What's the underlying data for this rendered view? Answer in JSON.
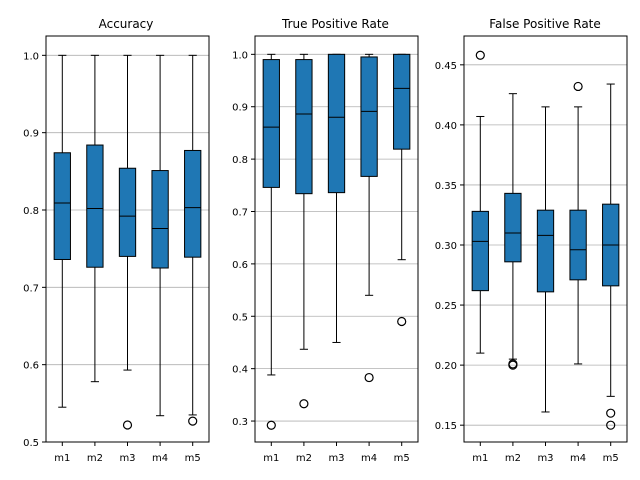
{
  "chart_data": [
    {
      "type": "boxplot",
      "title": "Accuracy",
      "categories": [
        "m1",
        "m2",
        "m3",
        "m4",
        "m5"
      ],
      "ylim": [
        0.5,
        1.025
      ],
      "yticks": [
        0.5,
        0.6,
        0.7,
        0.8,
        0.9,
        1.0
      ],
      "ytick_labels": [
        "0.5",
        "0.6",
        "0.7",
        "0.8",
        "0.9",
        "1.0"
      ],
      "grid": "y",
      "boxes": [
        {
          "whislo": 0.545,
          "q1": 0.736,
          "med": 0.809,
          "q3": 0.874,
          "whishi": 1.0,
          "fliers": []
        },
        {
          "whislo": 0.578,
          "q1": 0.726,
          "med": 0.802,
          "q3": 0.884,
          "whishi": 1.0,
          "fliers": []
        },
        {
          "whislo": 0.593,
          "q1": 0.74,
          "med": 0.792,
          "q3": 0.854,
          "whishi": 1.0,
          "fliers": [
            0.522
          ]
        },
        {
          "whislo": 0.534,
          "q1": 0.725,
          "med": 0.776,
          "q3": 0.851,
          "whishi": 1.0,
          "fliers": []
        },
        {
          "whislo": 0.535,
          "q1": 0.739,
          "med": 0.803,
          "q3": 0.877,
          "whishi": 1.0,
          "fliers": [
            0.527
          ]
        }
      ]
    },
    {
      "type": "boxplot",
      "title": "True Positive Rate",
      "categories": [
        "m1",
        "m2",
        "m3",
        "m4",
        "m5"
      ],
      "ylim": [
        0.26,
        1.035
      ],
      "yticks": [
        0.3,
        0.4,
        0.5,
        0.6,
        0.7,
        0.8,
        0.9,
        1.0
      ],
      "ytick_labels": [
        "0.3",
        "0.4",
        "0.5",
        "0.6",
        "0.7",
        "0.8",
        "0.9",
        "1.0"
      ],
      "grid": "y",
      "boxes": [
        {
          "whislo": 0.388,
          "q1": 0.746,
          "med": 0.861,
          "q3": 0.99,
          "whishi": 1.0,
          "fliers": [
            0.292
          ]
        },
        {
          "whislo": 0.437,
          "q1": 0.734,
          "med": 0.886,
          "q3": 0.99,
          "whishi": 1.0,
          "fliers": [
            0.333
          ]
        },
        {
          "whislo": 0.45,
          "q1": 0.736,
          "med": 0.88,
          "q3": 1.0,
          "whishi": 1.0,
          "fliers": []
        },
        {
          "whislo": 0.54,
          "q1": 0.767,
          "med": 0.891,
          "q3": 0.995,
          "whishi": 1.0,
          "fliers": [
            0.383
          ]
        },
        {
          "whislo": 0.608,
          "q1": 0.819,
          "med": 0.935,
          "q3": 1.0,
          "whishi": 1.0,
          "fliers": [
            0.49
          ]
        }
      ]
    },
    {
      "type": "boxplot",
      "title": "False Positive Rate",
      "categories": [
        "m1",
        "m2",
        "m3",
        "m4",
        "m5"
      ],
      "ylim": [
        0.136,
        0.474
      ],
      "yticks": [
        0.15,
        0.2,
        0.25,
        0.3,
        0.35,
        0.4,
        0.45
      ],
      "ytick_labels": [
        "0.15",
        "0.20",
        "0.25",
        "0.30",
        "0.35",
        "0.40",
        "0.45"
      ],
      "grid": "y",
      "boxes": [
        {
          "whislo": 0.21,
          "q1": 0.262,
          "med": 0.303,
          "q3": 0.328,
          "whishi": 0.407,
          "fliers": [
            0.458
          ]
        },
        {
          "whislo": 0.205,
          "q1": 0.286,
          "med": 0.31,
          "q3": 0.343,
          "whishi": 0.426,
          "fliers": [
            0.2,
            0.201
          ]
        },
        {
          "whislo": 0.161,
          "q1": 0.261,
          "med": 0.308,
          "q3": 0.329,
          "whishi": 0.415,
          "fliers": []
        },
        {
          "whislo": 0.201,
          "q1": 0.271,
          "med": 0.296,
          "q3": 0.329,
          "whishi": 0.415,
          "fliers": [
            0.432
          ]
        },
        {
          "whislo": 0.174,
          "q1": 0.266,
          "med": 0.3,
          "q3": 0.334,
          "whishi": 0.434,
          "fliers": [
            0.16,
            0.15
          ]
        }
      ]
    }
  ],
  "colors": {
    "box_fill": "#1f77b4",
    "box_edge": "#000000",
    "grid": "#b0b0b0",
    "axes": "#000000",
    "background": "#ffffff"
  }
}
